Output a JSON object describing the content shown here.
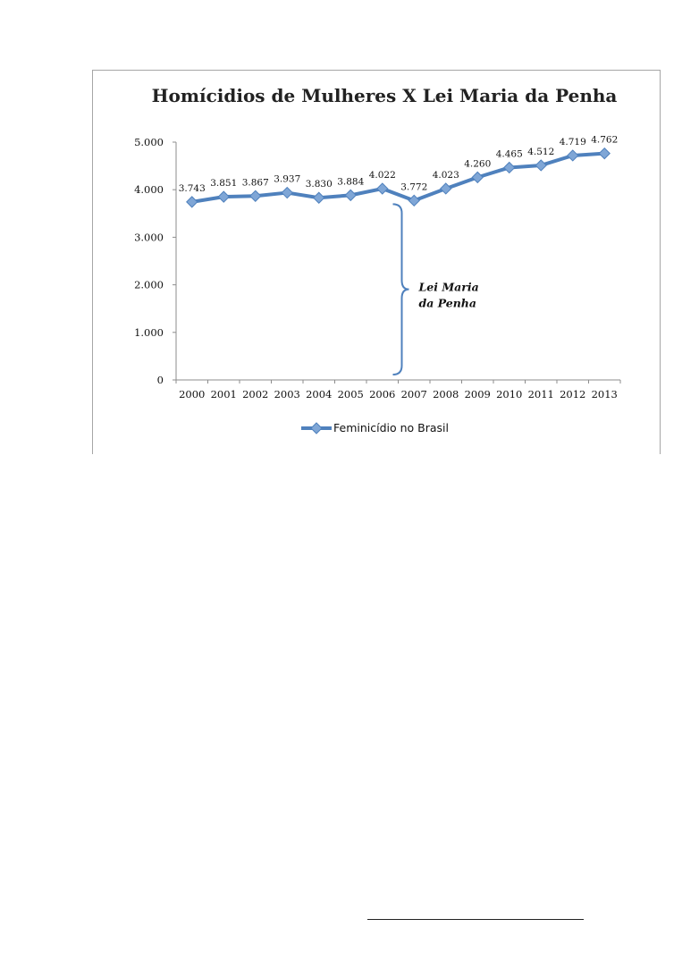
{
  "chart_data": {
    "type": "line",
    "title": "Homícidios de Mulheres X Lei Maria da Penha",
    "xlabel": "",
    "ylabel": "",
    "categories": [
      "2000",
      "2001",
      "2002",
      "2003",
      "2004",
      "2005",
      "2006",
      "2007",
      "2008",
      "2009",
      "2010",
      "2011",
      "2012",
      "2013"
    ],
    "series": [
      {
        "name": "Feminicídio no Brasil",
        "values": [
          3743,
          3851,
          3867,
          3937,
          3830,
          3884,
          4022,
          3772,
          4023,
          4260,
          4465,
          4512,
          4719,
          4762
        ],
        "labels": [
          "3.743",
          "3.851",
          "3.867",
          "3.937",
          "3.830",
          "3.884",
          "4.022",
          "3.772",
          "4.023",
          "4.260",
          "4.465",
          "4.512",
          "4.719",
          "4.762"
        ],
        "color": "#4f81bd"
      }
    ],
    "ylim": [
      0,
      5000
    ],
    "yticks": [
      0,
      1000,
      2000,
      3000,
      4000,
      5000
    ],
    "ytick_labels": [
      "0",
      "1.000",
      "2.000",
      "3.000",
      "4.000",
      "5.000"
    ],
    "grid": false,
    "legend_position": "bottom",
    "annotation": {
      "lines": [
        "Lei Maria",
        "da Penha"
      ],
      "after_category": "2006"
    }
  }
}
